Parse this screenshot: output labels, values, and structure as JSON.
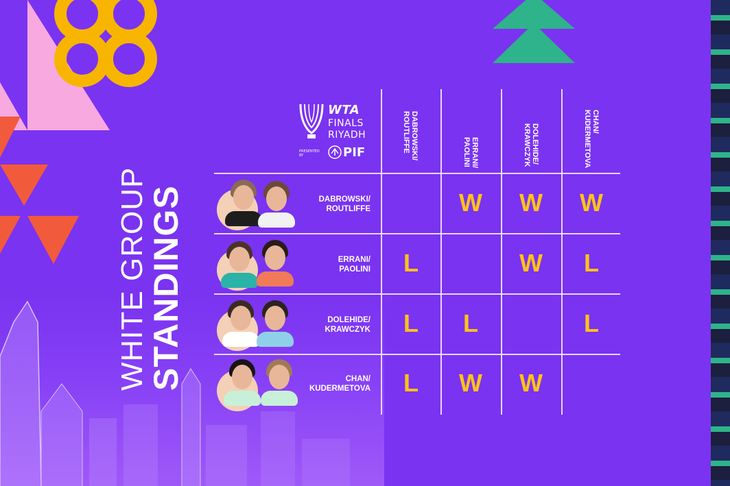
{
  "event": {
    "brand": "WTA",
    "line1": "FINALS",
    "line2": "RIYADH",
    "presented_by": "PRESENTED BY",
    "sponsor": "PIF"
  },
  "title": {
    "light": "WHITE GROUP",
    "bold": "STANDINGS"
  },
  "colors": {
    "background": "#7a33f0",
    "result": "#ffc21a",
    "text": "#ffffff",
    "accent_green": "#2fb38a",
    "accent_coral": "#f25a3c",
    "accent_pink": "#f7a9e0",
    "accent_gold": "#f7b500"
  },
  "columns": [
    "DABROWSKI/\nROUTLIFFE",
    "ERRANI/\nPAOLINI",
    "DOLEHIDE/\nKRAWCZYK",
    "CHAN/\nKUDERMETOVA"
  ],
  "rows": [
    {
      "name": "DABROWSKI/\nROUTLIFFE",
      "results": [
        "",
        "W",
        "W",
        "W"
      ]
    },
    {
      "name": "ERRANI/\nPAOLINI",
      "results": [
        "L",
        "",
        "W",
        "L"
      ]
    },
    {
      "name": "DOLEHIDE/\nKRAWCZYK",
      "results": [
        "L",
        "L",
        "",
        "L"
      ]
    },
    {
      "name": "CHAN/\nKUDERMETOVA",
      "results": [
        "L",
        "W",
        "W",
        ""
      ]
    }
  ]
}
